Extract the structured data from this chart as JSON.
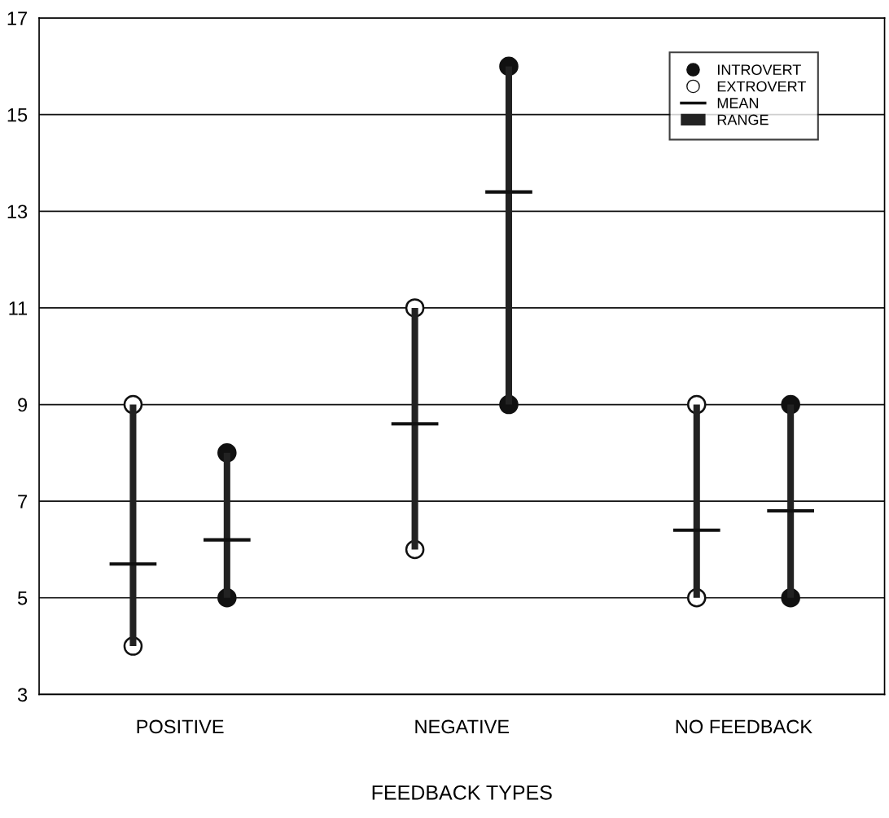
{
  "chart_data": {
    "type": "bar",
    "xlabel": "FEEDBACK TYPES",
    "categories": [
      null,
      null,
      null,
      "POSITIVE",
      null,
      null,
      null,
      null,
      null,
      null,
      null,
      null,
      null,
      null,
      null,
      "NEGATIVE",
      null,
      null,
      null,
      null,
      null,
      null,
      null,
      null,
      null,
      null,
      null,
      "NO FEEDBACK",
      null,
      null,
      null
    ],
    "series": [
      {
        "name": "INTROVERT",
        "type": "scatter",
        "marker": "circle",
        "color": "#111111",
        "values": [
          null,
          null,
          null,
          null,
          null,
          8,
          null,
          null,
          null,
          null,
          null,
          null,
          null,
          null,
          null,
          null,
          null,
          16,
          null,
          null,
          null,
          null,
          null,
          null,
          null,
          null,
          null,
          null,
          null,
          9,
          null
        ]
      },
      {
        "type": "scatter",
        "marker": "circle",
        "color": "#111111",
        "values": [
          null,
          null,
          null,
          null,
          null,
          5,
          null,
          null,
          null,
          null,
          null,
          null,
          null,
          null,
          null,
          null,
          null,
          9,
          null,
          null,
          null,
          null,
          null,
          null,
          null,
          null,
          null,
          null,
          null,
          5,
          null
        ]
      },
      {
        "name": "EXTROVERT",
        "type": "scatter",
        "marker": "circle",
        "color": "#ffffff",
        "values": [
          null,
          9,
          null,
          null,
          null,
          null,
          null,
          null,
          null,
          null,
          null,
          null,
          null,
          11,
          null,
          null,
          null,
          null,
          null,
          null,
          null,
          null,
          null,
          null,
          null,
          9,
          null,
          null,
          null,
          null,
          null
        ]
      },
      {
        "type": "scatter",
        "marker": "circle",
        "color": "#ffffff",
        "values": [
          null,
          4,
          null,
          null,
          null,
          null,
          null,
          null,
          null,
          null,
          null,
          null,
          null,
          6,
          null,
          null,
          null,
          null,
          null,
          null,
          null,
          null,
          null,
          null,
          null,
          5,
          null,
          null,
          null,
          null,
          null
        ]
      },
      {
        "name": "MEAN",
        "type": "line",
        "line_style": "solid",
        "color": "#111111",
        "values": [
          5.7,
          5.7,
          5.7,
          null,
          6.2,
          6.2,
          6.2,
          null,
          null,
          null,
          null,
          null,
          8.6,
          8.6,
          8.6,
          null,
          13.4,
          13.4,
          13.4,
          null,
          null,
          null,
          null,
          null,
          6.4,
          6.4,
          6.4,
          null,
          6.8,
          6.8,
          6.8
        ]
      },
      {
        "name": "RANGE",
        "color": "#222222",
        "base": [
          null,
          4,
          null,
          null,
          null,
          5,
          null,
          null,
          null,
          null,
          null,
          null,
          null,
          6,
          null,
          null,
          null,
          9,
          null,
          null,
          null,
          null,
          null,
          null,
          null,
          5,
          null,
          null,
          null,
          5,
          null
        ],
        "values": [
          null,
          5,
          null,
          null,
          null,
          3,
          null,
          null,
          null,
          null,
          null,
          null,
          null,
          5,
          null,
          null,
          null,
          7,
          null,
          null,
          null,
          null,
          null,
          null,
          null,
          4,
          null,
          null,
          null,
          4,
          null
        ]
      }
    ],
    "ylim": [
      3,
      17
    ],
    "yticks": [
      3,
      5,
      7,
      9,
      11,
      13,
      15,
      17
    ],
    "grid": "y",
    "legend": "top right"
  }
}
